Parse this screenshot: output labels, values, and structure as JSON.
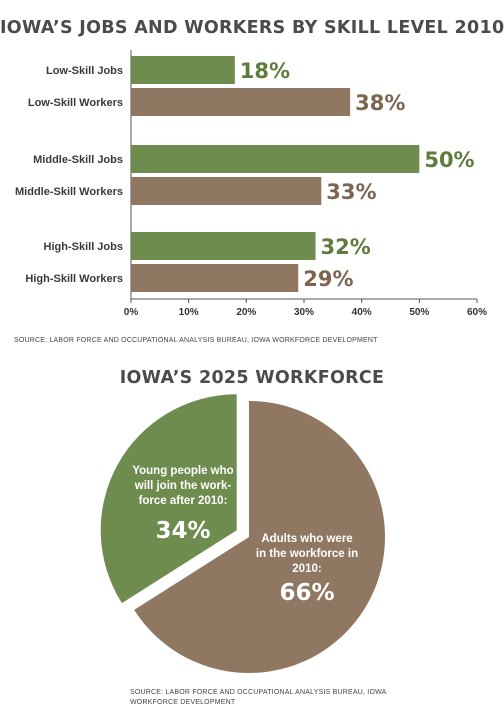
{
  "bar_section": {
    "title": "IOWA’S JOBS AND WORKERS BY SKILL LEVEL 2010",
    "source": "SOURCE: LABOR FORCE AND OCCUPATIONAL ANALYSIS BUREAU, IOWA WORKFORCE DEVELOPMENT"
  },
  "pie_section": {
    "title": "IOWA’S 2025 WORKFORCE",
    "source_line1": "SOURCE: LABOR FORCE AND OCCUPATIONAL ANALYSIS BUREAU, IOWA",
    "source_line2": "WORKFORCE DEVELOPMENT"
  },
  "colors": {
    "jobs": "#6f8c4f",
    "workers": "#8f7761",
    "jobs_text": "#5e7c3d",
    "workers_text": "#7b6450"
  },
  "chart_data": [
    {
      "type": "bar",
      "orientation": "horizontal",
      "title": "IOWA’S JOBS AND WORKERS BY SKILL LEVEL 2010",
      "categories": [
        "Low-Skill Jobs",
        "Low-Skill Workers",
        "Middle-Skill Jobs",
        "Middle-Skill Workers",
        "High-Skill Jobs",
        "High-Skill Workers"
      ],
      "values": [
        18,
        38,
        50,
        33,
        32,
        29
      ],
      "value_labels": [
        "18%",
        "38%",
        "50%",
        "33%",
        "32%",
        "29%"
      ],
      "kinds": [
        "jobs",
        "workers",
        "jobs",
        "workers",
        "jobs",
        "workers"
      ],
      "xlim": [
        0,
        60
      ],
      "ticks": [
        0,
        10,
        20,
        30,
        40,
        50,
        60
      ],
      "tick_labels": [
        "0%",
        "10%",
        "20%",
        "30%",
        "40%",
        "50%",
        "60%"
      ],
      "grid": false
    },
    {
      "type": "pie",
      "title": "IOWA’S 2025 WORKFORCE",
      "slices": [
        {
          "label_lines": [
            "Young people who",
            "will join the work-",
            "force after 2010:"
          ],
          "value": 34,
          "value_label": "34%",
          "kind": "jobs"
        },
        {
          "label_lines": [
            "Adults who were",
            "in the workforce in",
            "2010:"
          ],
          "value": 66,
          "value_label": "66%",
          "kind": "workers"
        }
      ]
    }
  ]
}
